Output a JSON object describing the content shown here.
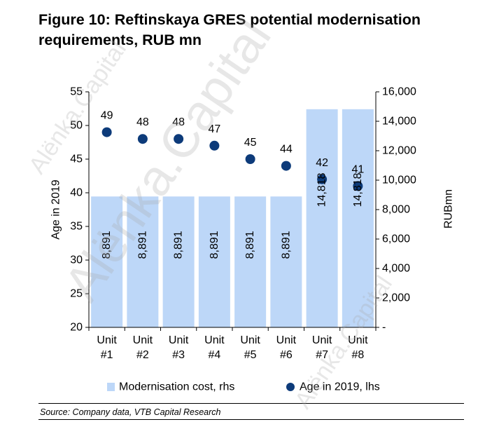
{
  "figure": {
    "title": "Figure 10: Reftinskaya GRES potential modernisation requirements, RUB mn",
    "source": "Source: Company data, VTB Capital Research"
  },
  "watermark": {
    "text": "Alёnka.Capital"
  },
  "chart_data": {
    "type": "bar+scatter",
    "categories": [
      "Unit #1",
      "Unit #2",
      "Unit #3",
      "Unit #4",
      "Unit #5",
      "Unit #6",
      "Unit #7",
      "Unit #8"
    ],
    "category_lines": [
      [
        "Unit",
        "#1"
      ],
      [
        "Unit",
        "#2"
      ],
      [
        "Unit",
        "#3"
      ],
      [
        "Unit",
        "#4"
      ],
      [
        "Unit",
        "#5"
      ],
      [
        "Unit",
        "#6"
      ],
      [
        "Unit",
        "#7"
      ],
      [
        "Unit",
        "#8"
      ]
    ],
    "series": [
      {
        "name": "Modernisation cost, rhs",
        "type": "bar",
        "axis": "right",
        "color": "#bdd7f8",
        "values": [
          8891,
          8891,
          8891,
          8891,
          8891,
          8891,
          14818,
          14818
        ],
        "labels": [
          "8,891",
          "8,891",
          "8,891",
          "8,891",
          "8,891",
          "8,891",
          "14,818",
          "14,818"
        ]
      },
      {
        "name": "Age in 2019, lhs",
        "type": "scatter",
        "axis": "left",
        "color": "#0d3b7a",
        "values": [
          49,
          48,
          48,
          47,
          45,
          44,
          42,
          41
        ],
        "labels": [
          "49",
          "48",
          "48",
          "47",
          "45",
          "44",
          "42",
          "41"
        ]
      }
    ],
    "y_left": {
      "label": "Age in 2019",
      "range": [
        20,
        55
      ],
      "ticks": [
        20,
        25,
        30,
        35,
        40,
        45,
        50,
        55
      ],
      "tick_labels": [
        "20",
        "25",
        "30",
        "35",
        "40",
        "45",
        "50",
        "55"
      ]
    },
    "y_right": {
      "label": "RUBmn",
      "range": [
        0,
        16000
      ],
      "ticks": [
        0,
        2000,
        4000,
        6000,
        8000,
        10000,
        12000,
        14000,
        16000
      ],
      "tick_labels": [
        "-",
        "2,000",
        "4,000",
        "6,000",
        "8,000",
        "10,000",
        "12,000",
        "14,000",
        "16,000"
      ]
    },
    "legend_position": "bottom",
    "grid": false
  }
}
